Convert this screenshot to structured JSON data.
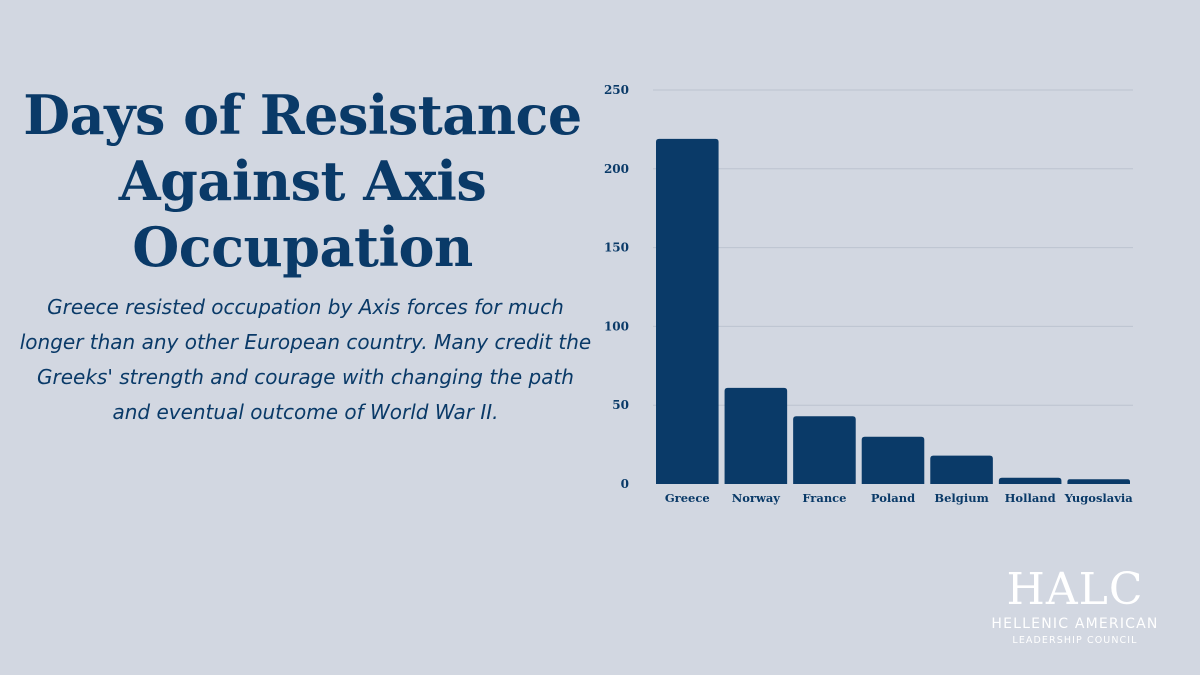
{
  "title": "Days of Resistance Against Axis Occupation",
  "description": "Greece resisted occupation by Axis forces for much longer than any other European country. Many credit the Greeks' strength and courage with changing the path and eventual outcome of World War II.",
  "logo": {
    "mark": "HALC",
    "line1": "HELLENIC AMERICAN",
    "line2": "LEADERSHIP COUNCIL"
  },
  "colors": {
    "background": "#d2d7e1",
    "bar": "#0a3a68",
    "text": "#0a3a68",
    "grid": "#bcc3d0"
  },
  "chart_data": {
    "type": "bar",
    "categories": [
      "Greece",
      "Norway",
      "France",
      "Poland",
      "Belgium",
      "Holland",
      "Yugoslavia"
    ],
    "values": [
      219,
      61,
      43,
      30,
      18,
      4,
      3
    ],
    "yticks": [
      0,
      50,
      100,
      150,
      200,
      250
    ],
    "ylim": [
      0,
      250
    ],
    "title": "",
    "xlabel": "",
    "ylabel": "",
    "grid": true,
    "legend": "none"
  }
}
